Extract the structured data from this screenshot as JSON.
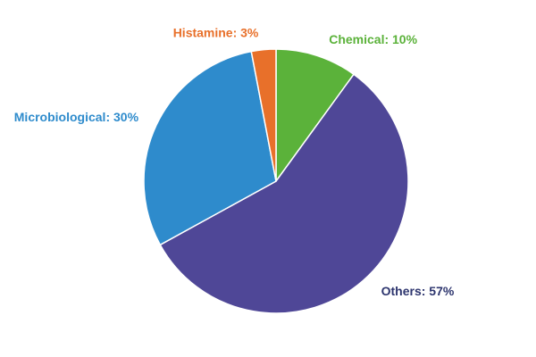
{
  "chart_data": {
    "type": "pie",
    "values": [
      10,
      57,
      30,
      3
    ],
    "value_labels": [
      "Chemical: 10%",
      "Others: 57%",
      "Microbiological: 30%",
      "Histamine: 3%"
    ],
    "colors": [
      "#5bb23a",
      "#4f4797",
      "#2e8bcc",
      "#e8702a"
    ],
    "label_colors": [
      "#5bb23a",
      "#2d356e",
      "#2e8bcc",
      "#e8702a"
    ]
  }
}
